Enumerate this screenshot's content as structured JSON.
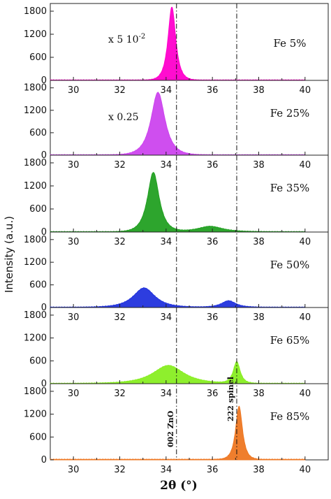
{
  "chart_data": {
    "type": "area",
    "xlabel": "2θ (°)",
    "ylabel": "Intensity (a.u.)",
    "xlim": [
      29,
      41
    ],
    "ylim": [
      0,
      2000
    ],
    "xticks": [
      30,
      32,
      34,
      36,
      38,
      40
    ],
    "xtick_labels": [
      "30",
      "32",
      "34",
      "36",
      "38",
      "40"
    ],
    "yticks": [
      0,
      600,
      1200,
      1800
    ],
    "ytick_labels": [
      "0",
      "600",
      "1200",
      "1800"
    ],
    "reference_lines": [
      {
        "x": 34.45,
        "label": "002 ZnO"
      },
      {
        "x": 37.05,
        "label": "222 spinel"
      }
    ],
    "panels": [
      {
        "name": "Fe 5%",
        "scale_label": "x 5 10-2",
        "color": "#ff00cc",
        "baseline": 10,
        "peaks": [
          {
            "center": 34.25,
            "height": 1900,
            "width": 0.25
          }
        ]
      },
      {
        "name": "Fe 25%",
        "scale_label": "x 0.25",
        "color": "#cc44ee",
        "baseline": 10,
        "peaks": [
          {
            "center": 33.65,
            "height": 1670,
            "width": 0.45
          }
        ]
      },
      {
        "name": "Fe 35%",
        "scale_label": "",
        "color": "#22a022",
        "baseline": 10,
        "peaks": [
          {
            "center": 33.45,
            "height": 1540,
            "width": 0.38
          },
          {
            "center": 35.9,
            "height": 140,
            "width": 0.8
          }
        ]
      },
      {
        "name": "Fe 50%",
        "scale_label": "",
        "color": "#2233dd",
        "baseline": 10,
        "peaks": [
          {
            "center": 33.05,
            "height": 510,
            "width": 0.7
          },
          {
            "center": 36.7,
            "height": 170,
            "width": 0.45
          }
        ]
      },
      {
        "name": "Fe 65%",
        "scale_label": "",
        "color": "#88ee22",
        "baseline": 10,
        "peaks": [
          {
            "center": 34.1,
            "height": 470,
            "width": 1.0
          },
          {
            "center": 37.05,
            "height": 560,
            "width": 0.22
          }
        ]
      },
      {
        "name": "Fe 85%",
        "scale_label": "",
        "color": "#ee7722",
        "baseline": 15,
        "peaks": [
          {
            "center": 37.15,
            "height": 1390,
            "width": 0.22
          }
        ]
      }
    ]
  }
}
